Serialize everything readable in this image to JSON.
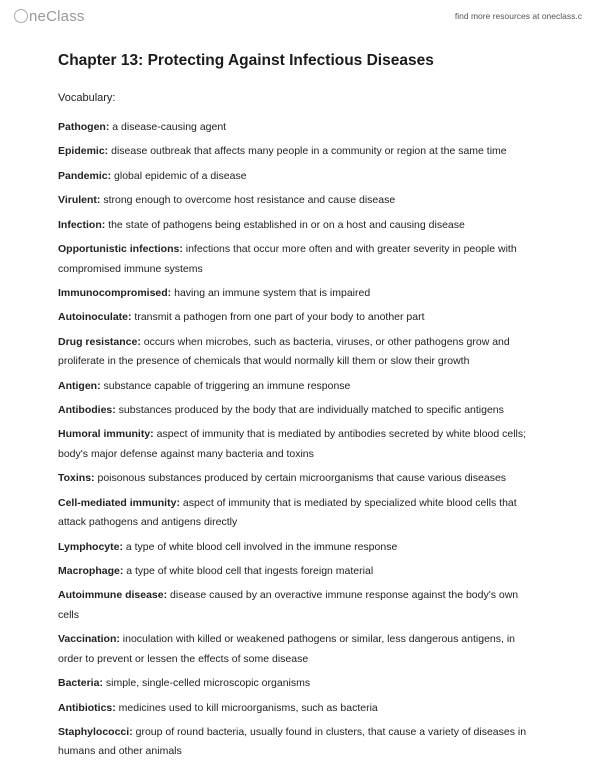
{
  "header": {
    "logo_text": "neClass",
    "right_text": "find more resources at oneclass.c"
  },
  "title": "Chapter 13: Protecting Against Infectious Diseases",
  "section": "Vocabulary:",
  "vocab": [
    {
      "term": "Pathogen:",
      "def": " a disease-causing agent"
    },
    {
      "term": "Epidemic:",
      "def": " disease outbreak that affects many people in a community or region at the same time"
    },
    {
      "term": "Pandemic:",
      "def": " global epidemic of a disease"
    },
    {
      "term": "Virulent:",
      "def": " strong enough to overcome host resistance and cause disease"
    },
    {
      "term": "Infection:",
      "def": " the state of pathogens being established in or on a host and causing disease"
    },
    {
      "term": "Opportunistic infections:",
      "def": " infections that occur more often and with greater severity in people with compromised immune systems"
    },
    {
      "term": "Immunocompromised:",
      "def": " having an immune system that is impaired"
    },
    {
      "term": "Autoinoculate:",
      "def": " transmit a pathogen from one part of your body to another part"
    },
    {
      "term": "Drug resistance:",
      "def": " occurs when microbes, such as bacteria, viruses, or other pathogens grow and proliferate in the presence of chemicals that would normally kill them or slow their growth"
    },
    {
      "term": "Antigen:",
      "def": " substance capable of triggering an immune response"
    },
    {
      "term": "Antibodies:",
      "def": " substances produced by the body that are individually matched to specific antigens"
    },
    {
      "term": "Humoral immunity:",
      "def": " aspect of immunity that is mediated by antibodies secreted by white blood cells; body's major defense against many bacteria and toxins"
    },
    {
      "term": "Toxins:",
      "def": " poisonous substances produced by certain microorganisms that cause various diseases"
    },
    {
      "term": "Cell-mediated immunity:",
      "def": " aspect of immunity that is mediated by specialized white blood cells that attack pathogens and antigens directly"
    },
    {
      "term": "Lymphocyte:",
      "def": " a type of white blood cell involved in the immune response"
    },
    {
      "term": "Macrophage:",
      "def": " a type of white blood cell that ingests foreign material"
    },
    {
      "term": "Autoimmune disease:",
      "def": " disease caused by an overactive immune response against the body's own cells"
    },
    {
      "term": "Vaccination:",
      "def": " inoculation with killed or weakened pathogens or similar, less dangerous antigens, in order to prevent or lessen the effects of some disease"
    },
    {
      "term": "Bacteria:",
      "def": " simple, single-celled microscopic organisms"
    },
    {
      "term": "Antibiotics:",
      "def": " medicines used to kill microorganisms, such as bacteria"
    },
    {
      "term": "Staphylococci:",
      "def": " group of round bacteria, usually found in clusters, that cause a variety of diseases in humans and other animals"
    }
  ]
}
